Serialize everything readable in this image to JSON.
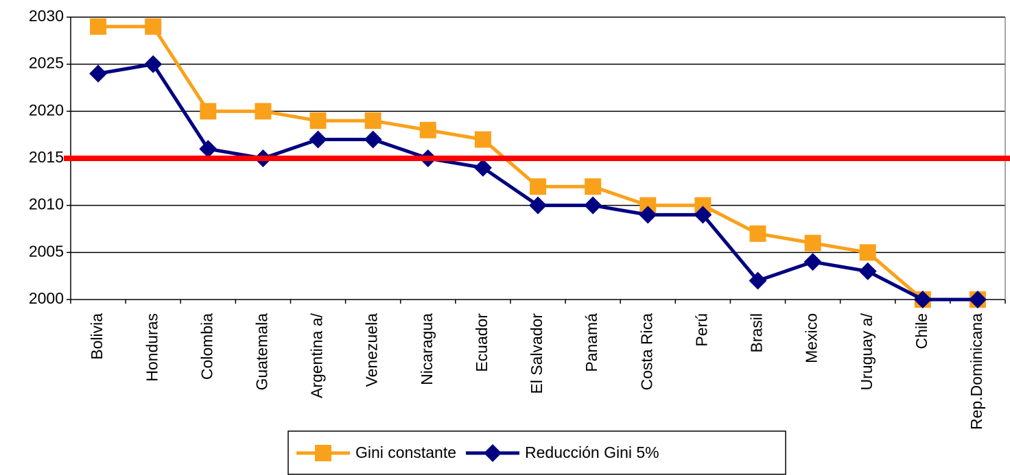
{
  "chart_data": {
    "type": "line",
    "categories": [
      "Bolivia",
      "Honduras",
      "Colombia",
      "Guatemala",
      "Argentina a/",
      "Venezuela",
      "Nicaragua",
      "Ecuador",
      "El Salvador",
      "Panamá",
      "Costa Rica",
      "Perú",
      "Brasil",
      "Mexico",
      "Uruguay a/",
      "Chile",
      "Rep.Dominicana"
    ],
    "series": [
      {
        "name": "Gini constante",
        "color": "#f9a11b",
        "marker": "square",
        "values": [
          2029,
          2029,
          2020,
          2020,
          2019,
          2019,
          2018,
          2017,
          2012,
          2012,
          2010,
          2010,
          2007,
          2006,
          2005,
          2000,
          2000
        ]
      },
      {
        "name": "Reducción Gini 5%",
        "color": "#000080",
        "marker": "diamond",
        "values": [
          2024,
          2025,
          2016,
          2015,
          2017,
          2017,
          2015,
          2014,
          2010,
          2010,
          2009,
          2009,
          2002,
          2004,
          2003,
          2000,
          2000
        ]
      }
    ],
    "reference_line": {
      "value": 2015,
      "color": "#ff0000"
    },
    "ylim": [
      2000,
      2030
    ],
    "yticks": [
      2000,
      2005,
      2010,
      2015,
      2020,
      2025,
      2030
    ],
    "grid": true,
    "legend": "bottom"
  }
}
